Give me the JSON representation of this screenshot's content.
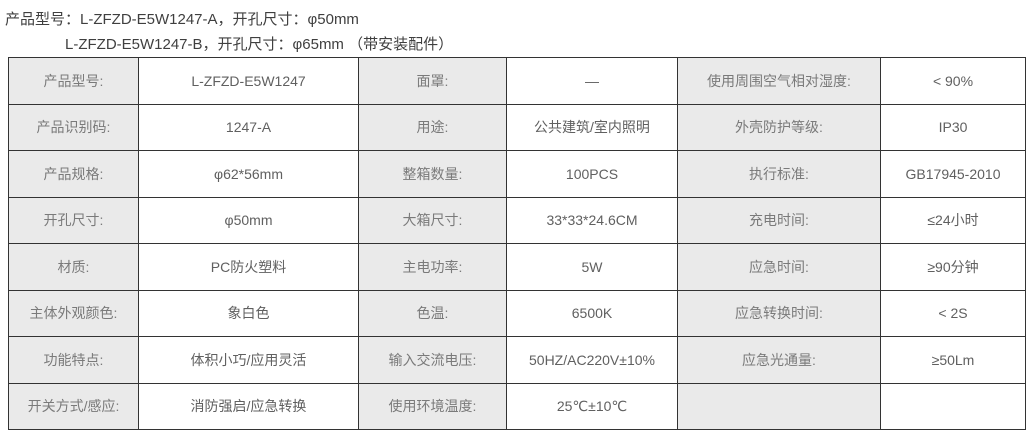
{
  "header": {
    "line1": "产品型号：L-ZFZD-E5W1247-A，开孔尺寸：φ50mm",
    "line2": "L-ZFZD-E5W1247-B，开孔尺寸：φ65mm （带安装配件）"
  },
  "colors": {
    "label_cell_bg": "#eaeaea",
    "value_cell_bg": "#ffffff",
    "table_border": "#333333",
    "label_text": "#7a7a7a",
    "value_text": "#606060",
    "header_text": "#3f3f3f"
  },
  "table": {
    "rows": [
      [
        "产品型号:",
        "L-ZFZD-E5W1247",
        "面罩:",
        "—",
        "使用周围空气相对湿度:",
        "< 90%"
      ],
      [
        "产品识别码:",
        "1247-A",
        "用途:",
        "公共建筑/室内照明",
        "外壳防护等级:",
        "IP30"
      ],
      [
        "产品规格:",
        "φ62*56mm",
        "整箱数量:",
        "100PCS",
        "执行标准:",
        "GB17945-2010"
      ],
      [
        "开孔尺寸:",
        "φ50mm",
        "大箱尺寸:",
        "33*33*24.6CM",
        "充电时间:",
        "≤24小时"
      ],
      [
        "材质:",
        "PC防火塑料",
        "主电功率:",
        "5W",
        "应急时间:",
        "≥90分钟"
      ],
      [
        "主体外观颜色:",
        "象白色",
        "色温:",
        "6500K",
        "应急转换时间:",
        "< 2S"
      ],
      [
        "功能特点:",
        "体积小巧/应用灵活",
        "输入交流电压:",
        "50HZ/AC220V±10%",
        "应急光通量:",
        "≥50Lm"
      ],
      [
        "开关方式/感应:",
        "消防强启/应急转换",
        "使用环境温度:",
        "25℃±10℃",
        "",
        ""
      ]
    ]
  }
}
